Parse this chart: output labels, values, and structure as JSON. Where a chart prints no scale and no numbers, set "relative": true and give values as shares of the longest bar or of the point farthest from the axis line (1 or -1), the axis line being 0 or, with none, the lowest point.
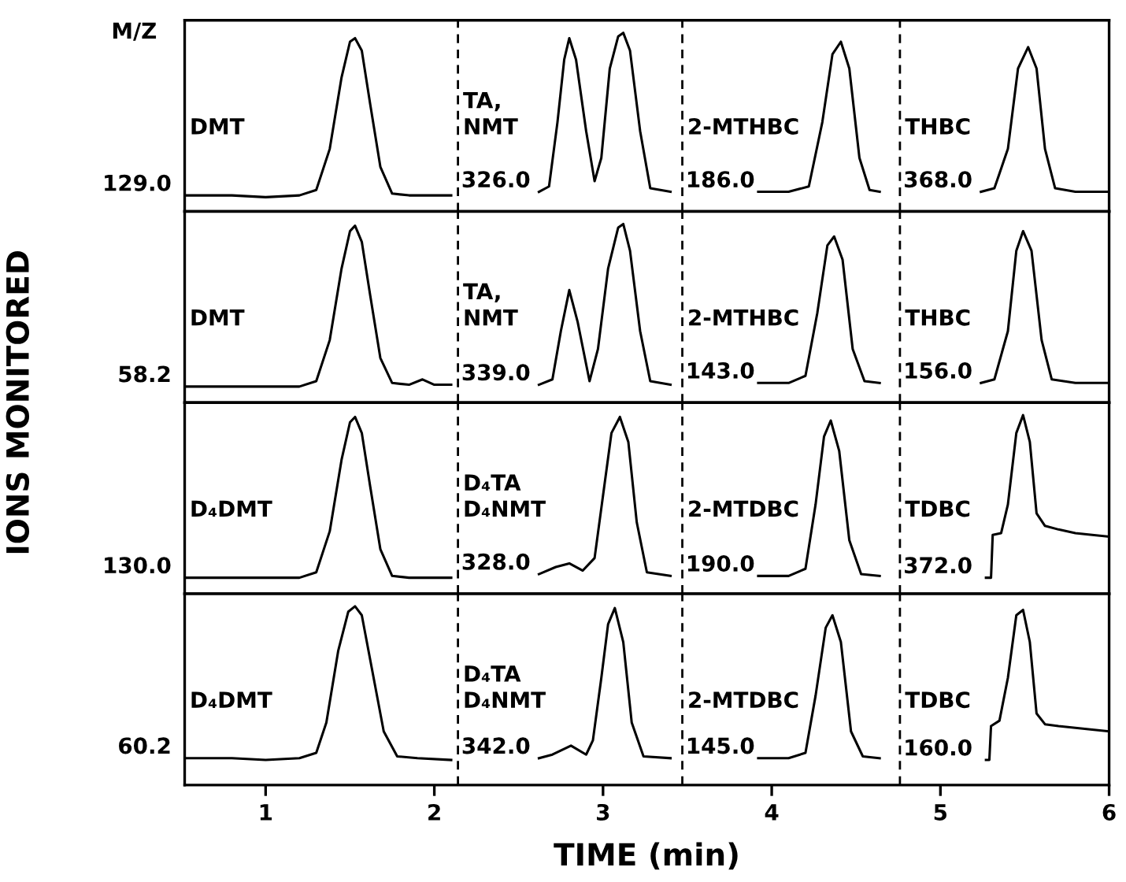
{
  "chart_data": [
    {
      "type": "line",
      "relative": true,
      "tick_labels": false,
      "xlim": [
        0.52,
        6.0
      ],
      "ylabel": "IONS MONITORED",
      "annotations": [
        "M/Z",
        {
          "text": "129.0",
          "x": 0.52,
          "y": 0.09
        },
        {
          "text": "326.0",
          "x": 2.16,
          "y": 0.11
        },
        {
          "text": "186.0",
          "x": 3.49,
          "y": 0.11
        },
        {
          "text": "368.0",
          "x": 4.78,
          "y": 0.11
        }
      ],
      "ref_lines": [
        {
          "axis": "x",
          "value": 2.14,
          "color": "#000000",
          "line_style": "dashed"
        },
        {
          "axis": "x",
          "value": 3.47,
          "color": "#000000",
          "line_style": "dashed"
        },
        {
          "axis": "x",
          "value": 4.76,
          "color": "#000000",
          "line_style": "dashed"
        }
      ],
      "series": [
        {
          "name": "DMT",
          "color": "#000000",
          "x": [
            0.53,
            0.8,
            1.0,
            1.2,
            1.3,
            1.38,
            1.45,
            1.5,
            1.53,
            1.57,
            1.62,
            1.68,
            1.75,
            1.85,
            2.1
          ],
          "values": [
            0.09,
            0.09,
            0.08,
            0.09,
            0.12,
            0.35,
            0.75,
            0.95,
            0.97,
            0.9,
            0.6,
            0.25,
            0.1,
            0.09,
            0.09
          ]
        },
        {
          "name": "TA,\nNMT",
          "color": "#000000",
          "x": [
            2.62,
            2.68,
            2.73,
            2.77,
            2.8,
            2.84,
            2.9,
            2.95,
            2.99,
            3.04,
            3.09,
            3.12,
            3.16,
            3.22,
            3.28,
            3.4
          ],
          "values": [
            0.11,
            0.14,
            0.5,
            0.85,
            0.97,
            0.85,
            0.45,
            0.17,
            0.3,
            0.8,
            0.98,
            1.0,
            0.9,
            0.45,
            0.13,
            0.11
          ]
        },
        {
          "name": "2-MTHBC",
          "color": "#000000",
          "x": [
            3.92,
            4.1,
            4.22,
            4.3,
            4.36,
            4.41,
            4.46,
            4.52,
            4.58,
            4.64
          ],
          "values": [
            0.11,
            0.11,
            0.14,
            0.5,
            0.88,
            0.95,
            0.8,
            0.3,
            0.12,
            0.11
          ]
        },
        {
          "name": "THBC",
          "color": "#000000",
          "x": [
            5.24,
            5.32,
            5.4,
            5.46,
            5.52,
            5.57,
            5.62,
            5.68,
            5.8,
            6.0
          ],
          "values": [
            0.11,
            0.13,
            0.35,
            0.8,
            0.92,
            0.8,
            0.35,
            0.13,
            0.11,
            0.11
          ]
        }
      ]
    },
    {
      "type": "line",
      "relative": true,
      "tick_labels": false,
      "xlim": [
        0.52,
        6.0
      ],
      "annotations": [
        {
          "text": "58.2",
          "x": 0.52,
          "y": 0.09
        },
        {
          "text": "339.0",
          "x": 2.16,
          "y": 0.1
        },
        {
          "text": "143.0",
          "x": 3.49,
          "y": 0.11
        },
        {
          "text": "156.0",
          "x": 4.78,
          "y": 0.11
        }
      ],
      "ref_lines": [
        {
          "axis": "x",
          "value": 2.14,
          "color": "#000000",
          "line_style": "dashed"
        },
        {
          "axis": "x",
          "value": 3.47,
          "color": "#000000",
          "line_style": "dashed"
        },
        {
          "axis": "x",
          "value": 4.76,
          "color": "#000000",
          "line_style": "dashed"
        }
      ],
      "series": [
        {
          "name": "DMT",
          "color": "#000000",
          "x": [
            0.53,
            0.8,
            1.0,
            1.2,
            1.3,
            1.38,
            1.45,
            1.5,
            1.53,
            1.57,
            1.62,
            1.68,
            1.75,
            1.85,
            1.93,
            2.0,
            2.1
          ],
          "values": [
            0.09,
            0.09,
            0.09,
            0.09,
            0.12,
            0.35,
            0.75,
            0.96,
            0.99,
            0.9,
            0.6,
            0.25,
            0.11,
            0.1,
            0.13,
            0.1,
            0.1
          ]
        },
        {
          "name": "TA,\nNMT",
          "color": "#000000",
          "x": [
            2.62,
            2.7,
            2.75,
            2.8,
            2.85,
            2.92,
            2.97,
            3.03,
            3.09,
            3.12,
            3.16,
            3.22,
            3.28,
            3.4
          ],
          "values": [
            0.1,
            0.13,
            0.4,
            0.63,
            0.45,
            0.12,
            0.3,
            0.75,
            0.98,
            1.0,
            0.85,
            0.4,
            0.12,
            0.1
          ]
        },
        {
          "name": "2-MTHBC",
          "color": "#000000",
          "x": [
            3.92,
            4.1,
            4.2,
            4.27,
            4.33,
            4.37,
            4.42,
            4.48,
            4.55,
            4.64
          ],
          "values": [
            0.11,
            0.11,
            0.15,
            0.5,
            0.88,
            0.93,
            0.8,
            0.3,
            0.12,
            0.11
          ]
        },
        {
          "name": "THBC",
          "color": "#000000",
          "x": [
            5.24,
            5.32,
            5.4,
            5.45,
            5.49,
            5.54,
            5.6,
            5.66,
            5.8,
            6.0
          ],
          "values": [
            0.11,
            0.13,
            0.4,
            0.85,
            0.96,
            0.85,
            0.35,
            0.13,
            0.11,
            0.11
          ]
        }
      ]
    },
    {
      "type": "line",
      "relative": true,
      "tick_labels": false,
      "xlim": [
        0.52,
        6.0
      ],
      "annotations": [
        {
          "text": "130.0",
          "x": 0.52,
          "y": 0.09
        },
        {
          "text": "328.0",
          "x": 2.16,
          "y": 0.11
        },
        {
          "text": "190.0",
          "x": 3.49,
          "y": 0.1
        },
        {
          "text": "372.0",
          "x": 4.78,
          "y": 0.09
        }
      ],
      "ref_lines": [
        {
          "axis": "x",
          "value": 2.14,
          "color": "#000000",
          "line_style": "dashed"
        },
        {
          "axis": "x",
          "value": 3.47,
          "color": "#000000",
          "line_style": "dashed"
        },
        {
          "axis": "x",
          "value": 4.76,
          "color": "#000000",
          "line_style": "dashed"
        }
      ],
      "series": [
        {
          "name": "D₄DMT",
          "color": "#000000",
          "x": [
            0.53,
            0.8,
            1.0,
            1.2,
            1.3,
            1.38,
            1.45,
            1.5,
            1.53,
            1.57,
            1.62,
            1.68,
            1.75,
            1.85,
            2.1
          ],
          "values": [
            0.09,
            0.09,
            0.09,
            0.09,
            0.12,
            0.35,
            0.75,
            0.96,
            0.99,
            0.9,
            0.6,
            0.25,
            0.1,
            0.09,
            0.09
          ]
        },
        {
          "name": "D₄TA\nD₄NMT",
          "color": "#000000",
          "x": [
            2.62,
            2.72,
            2.8,
            2.88,
            2.95,
            3.0,
            3.05,
            3.1,
            3.15,
            3.2,
            3.26,
            3.4
          ],
          "values": [
            0.11,
            0.15,
            0.17,
            0.13,
            0.2,
            0.55,
            0.9,
            0.99,
            0.85,
            0.4,
            0.12,
            0.1
          ]
        },
        {
          "name": "2-MTDBC",
          "color": "#000000",
          "x": [
            3.92,
            4.1,
            4.2,
            4.26,
            4.31,
            4.35,
            4.4,
            4.46,
            4.53,
            4.64
          ],
          "values": [
            0.1,
            0.1,
            0.14,
            0.5,
            0.88,
            0.97,
            0.8,
            0.3,
            0.11,
            0.1
          ]
        },
        {
          "name": "TDBC",
          "color": "#000000",
          "x": [
            5.27,
            5.3,
            5.31,
            5.36,
            5.4,
            5.45,
            5.49,
            5.53,
            5.57,
            5.62,
            5.7,
            5.8,
            5.9,
            6.0
          ],
          "values": [
            0.09,
            0.09,
            0.33,
            0.34,
            0.5,
            0.9,
            1.0,
            0.85,
            0.45,
            0.38,
            0.36,
            0.34,
            0.33,
            0.32
          ]
        }
      ]
    },
    {
      "type": "line",
      "relative": true,
      "tick_labels": "x",
      "xlim": [
        0.52,
        6.0
      ],
      "xticks": [
        1,
        2,
        3,
        4,
        5,
        6
      ],
      "xlabel": "TIME (min)",
      "annotations": [
        {
          "text": "60.2",
          "x": 0.52,
          "y": 0.15
        },
        {
          "text": "342.0",
          "x": 2.16,
          "y": 0.15
        },
        {
          "text": "145.0",
          "x": 3.49,
          "y": 0.15
        },
        {
          "text": "160.0",
          "x": 4.78,
          "y": 0.14
        }
      ],
      "ref_lines": [
        {
          "axis": "x",
          "value": 2.14,
          "color": "#000000",
          "line_style": "dashed"
        },
        {
          "axis": "x",
          "value": 3.47,
          "color": "#000000",
          "line_style": "dashed"
        },
        {
          "axis": "x",
          "value": 4.76,
          "color": "#000000",
          "line_style": "dashed"
        }
      ],
      "series": [
        {
          "name": "D₄DMT",
          "color": "#000000",
          "x": [
            0.53,
            0.8,
            1.0,
            1.2,
            1.3,
            1.36,
            1.43,
            1.49,
            1.53,
            1.57,
            1.63,
            1.7,
            1.78,
            1.9,
            2.1
          ],
          "values": [
            0.15,
            0.15,
            0.14,
            0.15,
            0.18,
            0.35,
            0.75,
            0.97,
            1.0,
            0.95,
            0.65,
            0.3,
            0.16,
            0.15,
            0.14
          ]
        },
        {
          "name": "D₄TA\nD₄NMT",
          "color": "#000000",
          "x": [
            2.62,
            2.7,
            2.81,
            2.9,
            2.94,
            2.99,
            3.03,
            3.07,
            3.12,
            3.17,
            3.24,
            3.4
          ],
          "values": [
            0.15,
            0.17,
            0.22,
            0.17,
            0.25,
            0.6,
            0.9,
            0.99,
            0.8,
            0.35,
            0.16,
            0.15
          ]
        },
        {
          "name": "2-MTDBC",
          "color": "#000000",
          "x": [
            3.92,
            4.1,
            4.2,
            4.26,
            4.32,
            4.36,
            4.41,
            4.47,
            4.54,
            4.64
          ],
          "values": [
            0.15,
            0.15,
            0.18,
            0.5,
            0.88,
            0.95,
            0.8,
            0.3,
            0.16,
            0.15
          ]
        },
        {
          "name": "TDBC",
          "color": "#000000",
          "x": [
            5.27,
            5.29,
            5.3,
            5.35,
            5.4,
            5.45,
            5.49,
            5.53,
            5.57,
            5.62,
            5.7,
            5.8,
            5.9,
            6.0
          ],
          "values": [
            0.14,
            0.14,
            0.33,
            0.36,
            0.6,
            0.95,
            0.98,
            0.8,
            0.4,
            0.34,
            0.33,
            0.32,
            0.31,
            0.3
          ]
        }
      ]
    }
  ]
}
